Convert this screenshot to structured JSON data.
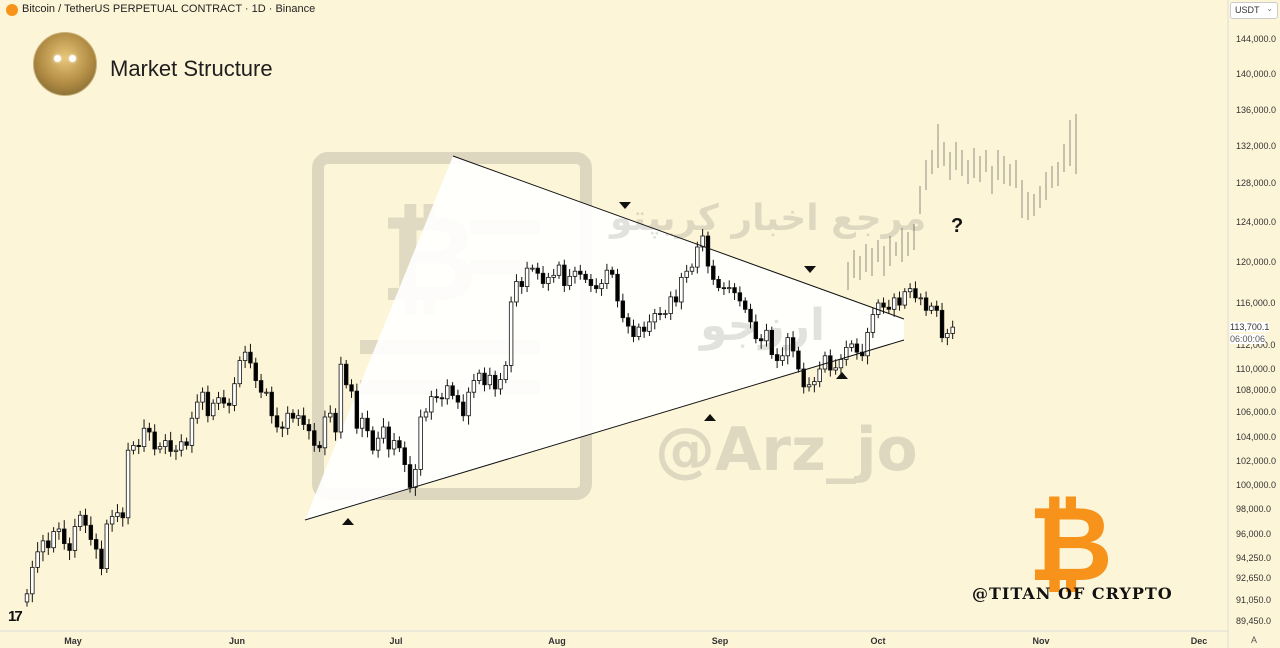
{
  "header": {
    "title": "Bitcoin / TetherUS PERPETUAL CONTRACT · 1D · Binance",
    "currency": "USDT"
  },
  "overlay": {
    "section_title": "Market Structure",
    "question_mark": "?",
    "watermark_handle": "@Arz_jo",
    "watermark_persian_1": "مرجع اخبار کریپتو",
    "watermark_persian_2": "ارزجو",
    "titan_credit": "@TITAN OF CRYPTO"
  },
  "price_tag": {
    "price": "113,700.1",
    "countdown": "06:00:06"
  },
  "axis_footer": {
    "auto_label": "A"
  },
  "colors": {
    "background": "#fdf5d8",
    "bitcoin_orange": "#f7931a",
    "candle_up": "#ffffff",
    "candle_down": "#000000"
  },
  "chart_data": {
    "type": "candlestick",
    "title": "Bitcoin / TetherUS PERPETUAL CONTRACT · 1D · Binance",
    "y_ticks": [
      "144,000.0",
      "140,000.0",
      "136,000.0",
      "132,000.0",
      "128,000.0",
      "124,000.0",
      "120,000.0",
      "116,000.0",
      "112,000.0",
      "110,000.0",
      "108,000.0",
      "106,000.0",
      "104,000.0",
      "102,000.0",
      "100,000.0",
      "98,000.0",
      "96,000.0",
      "94,250.0",
      "92,650.0",
      "91,050.0",
      "89,450.0"
    ],
    "x_ticks": [
      "May",
      "Jun",
      "Jul",
      "Aug",
      "Sep",
      "Oct",
      "Nov",
      "Dec"
    ],
    "price_line": 113700.1,
    "closes": [
      91500,
      93500,
      94700,
      95500,
      95000,
      96200,
      96400,
      95300,
      94800,
      96600,
      97500,
      96700,
      95600,
      94900,
      93400,
      96800,
      97400,
      97700,
      97300,
      102900,
      103300,
      103200,
      104700,
      104400,
      103000,
      103200,
      103700,
      102800,
      102900,
      103600,
      103300,
      105500,
      106900,
      107800,
      105700,
      106800,
      107300,
      106800,
      106600,
      108600,
      110700,
      111400,
      110500,
      108900,
      107800,
      107800,
      105700,
      104800,
      104700,
      105900,
      105500,
      105700,
      105000,
      104500,
      103300,
      103100,
      105600,
      105900,
      104400,
      110400,
      108500,
      107900,
      104700,
      105500,
      104500,
      102900,
      103900,
      104800,
      103000,
      103700,
      103100,
      101700,
      99800,
      101300,
      105600,
      106000,
      107400,
      107300,
      107200,
      108400,
      107500,
      106900,
      105700,
      107800,
      108900,
      109600,
      108500,
      109400,
      108100,
      109000,
      110300,
      116100,
      118100,
      117600,
      119400,
      119400,
      118900,
      117900,
      118500,
      118700,
      119700,
      117700,
      118600,
      119100,
      118800,
      118300,
      117700,
      117400,
      117900,
      119200,
      118800,
      116200,
      114600,
      113800,
      112800,
      113700,
      113300,
      114200,
      115000,
      114900,
      115000,
      116600,
      116100,
      118500,
      119100,
      119500,
      121500,
      122600,
      119600,
      118300,
      117500,
      117400,
      117500,
      117000,
      116200,
      115400,
      114200,
      112600,
      112400,
      113400,
      111200,
      110700,
      111100,
      112700,
      111500,
      110000,
      108300,
      108500,
      108800,
      110000,
      111100,
      109900,
      110100,
      110800,
      111800,
      112100,
      111400,
      111100,
      113200,
      114900,
      116000,
      115600,
      115400,
      116500,
      115800,
      117100,
      117400,
      116500,
      116500,
      115300,
      115700,
      115300,
      112700,
      113100,
      113700
    ],
    "projection": {
      "x": [
        30,
        44
      ],
      "y_range": [
        118500,
        135000
      ]
    },
    "triangle": {
      "upper_trendline": {
        "from": [
          "Jul-Aug",
          123500
        ],
        "to": [
          "Oct",
          114400
        ]
      },
      "lower_trendline": {
        "from": [
          "Jun",
          97200
        ],
        "to": [
          "Oct",
          112800
        ]
      }
    },
    "markers": [
      {
        "type": "down",
        "price": 124300
      },
      {
        "type": "down",
        "price": 119300
      },
      {
        "type": "up",
        "price": 98000
      },
      {
        "type": "up",
        "price": 107300
      },
      {
        "type": "up",
        "price": 110300
      }
    ]
  }
}
